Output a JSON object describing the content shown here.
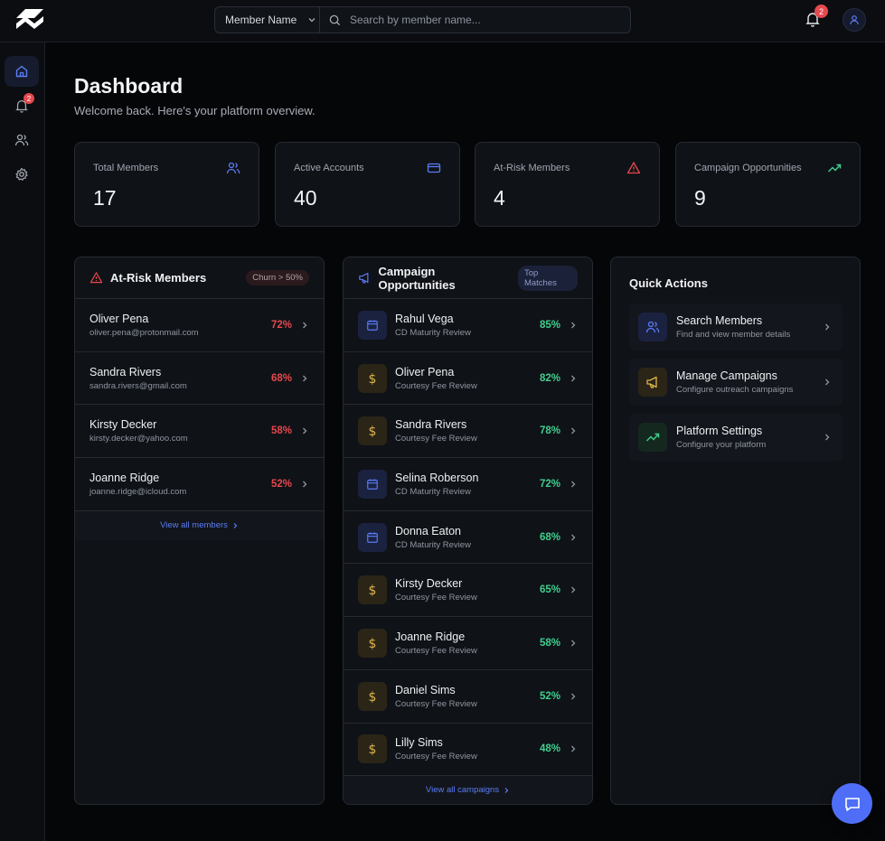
{
  "header": {
    "member_select_label": "Member Name",
    "search_placeholder": "Search by member name...",
    "notification_count": "2"
  },
  "sidebar": {
    "notification_count": "2",
    "items": [
      {
        "icon": "home-icon",
        "active": true
      },
      {
        "icon": "bell-icon",
        "active": false
      },
      {
        "icon": "users-icon",
        "active": false
      },
      {
        "icon": "gear-icon",
        "active": false
      }
    ]
  },
  "page": {
    "title": "Dashboard",
    "subtitle": "Welcome back. Here's your platform overview."
  },
  "stats": [
    {
      "label": "Total Members",
      "value": "17",
      "icon": "users-icon",
      "color": "#5b7cf5"
    },
    {
      "label": "Active Accounts",
      "value": "40",
      "icon": "credit-card-icon",
      "color": "#5b7cf5"
    },
    {
      "label": "At-Risk Members",
      "value": "4",
      "icon": "warning-icon",
      "color": "#e5484d"
    },
    {
      "label": "Campaign Opportunities",
      "value": "9",
      "icon": "trending-up-icon",
      "color": "#3fcf8e"
    }
  ],
  "at_risk": {
    "title": "At-Risk Members",
    "pill": "Churn > 50%",
    "members": [
      {
        "name": "Oliver Pena",
        "email": "oliver.pena@protonmail.com",
        "pct": "72%"
      },
      {
        "name": "Sandra Rivers",
        "email": "sandra.rivers@gmail.com",
        "pct": "68%"
      },
      {
        "name": "Kirsty Decker",
        "email": "kirsty.decker@yahoo.com",
        "pct": "58%"
      },
      {
        "name": "Joanne Ridge",
        "email": "joanne.ridge@icloud.com",
        "pct": "52%"
      }
    ],
    "footer_link": "View all members"
  },
  "campaigns": {
    "title": "Campaign Opportunities",
    "pill": "Top Matches",
    "items": [
      {
        "name": "Rahul Vega",
        "type": "CD Maturity Review",
        "pct": "85%",
        "icon": "calendar-icon"
      },
      {
        "name": "Oliver Pena",
        "type": "Courtesy Fee Review",
        "pct": "82%",
        "icon": "dollar-icon"
      },
      {
        "name": "Sandra Rivers",
        "type": "Courtesy Fee Review",
        "pct": "78%",
        "icon": "dollar-icon"
      },
      {
        "name": "Selina Roberson",
        "type": "CD Maturity Review",
        "pct": "72%",
        "icon": "calendar-icon"
      },
      {
        "name": "Donna Eaton",
        "type": "CD Maturity Review",
        "pct": "68%",
        "icon": "calendar-icon"
      },
      {
        "name": "Kirsty Decker",
        "type": "Courtesy Fee Review",
        "pct": "65%",
        "icon": "dollar-icon"
      },
      {
        "name": "Joanne Ridge",
        "type": "Courtesy Fee Review",
        "pct": "58%",
        "icon": "dollar-icon"
      },
      {
        "name": "Daniel Sims",
        "type": "Courtesy Fee Review",
        "pct": "52%",
        "icon": "dollar-icon"
      },
      {
        "name": "Lilly Sims",
        "type": "Courtesy Fee Review",
        "pct": "48%",
        "icon": "dollar-icon"
      }
    ],
    "footer_link": "View all campaigns"
  },
  "quick_actions": {
    "title": "Quick Actions",
    "items": [
      {
        "name": "Search Members",
        "desc": "Find and view member details",
        "icon": "users-icon"
      },
      {
        "name": "Manage Campaigns",
        "desc": "Configure outreach campaigns",
        "icon": "megaphone-icon"
      },
      {
        "name": "Platform Settings",
        "desc": "Configure your platform",
        "icon": "trending-up-icon"
      }
    ]
  },
  "colors": {
    "accent": "#5b7cf5",
    "danger": "#e5484d",
    "success": "#3fcf8e",
    "gold": "#e0b44c",
    "background": "#050608",
    "panel": "#0f1217"
  }
}
